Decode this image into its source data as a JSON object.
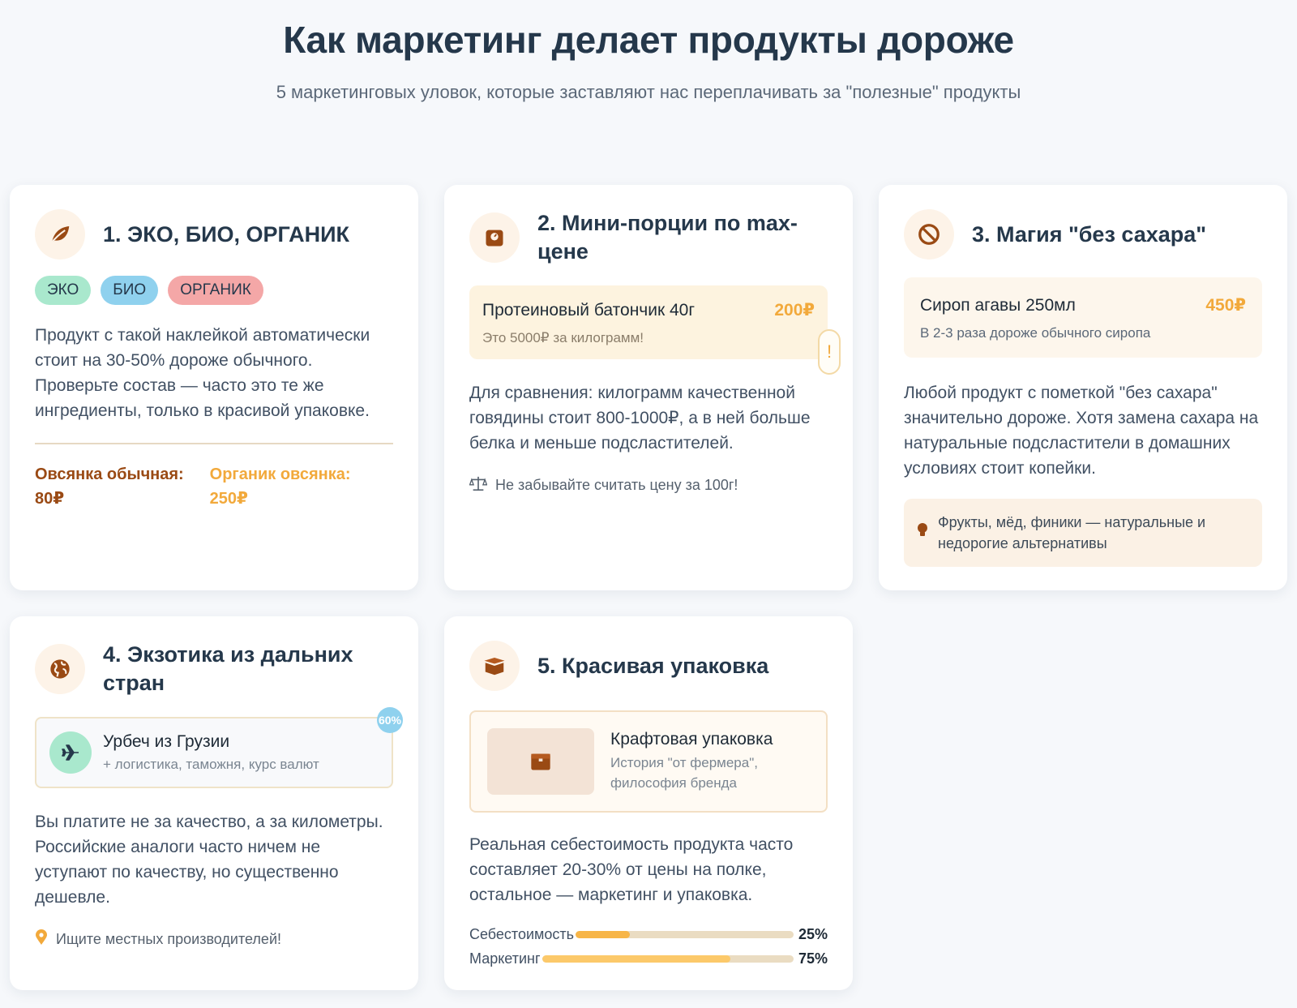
{
  "header": {
    "title": "Как маркетинг делает продукты дороже",
    "subtitle": "5 маркетинговых уловок, которые заставляют нас переплачивать за \"полезные\" продукты"
  },
  "cards": [
    {
      "title": "1. ЭКО, БИО, ОРГАНИК",
      "icon": "leaf-icon",
      "tags": [
        "ЭКО",
        "БИО",
        "ОРГАНИК"
      ],
      "text": "Продукт с такой наклейкой автоматически стоит на 30-50% дороже обычного. Проверьте состав — часто это те же ингредиенты, только в красивой упаковке.",
      "compare_plain": "Овсянка обычная: 80₽",
      "compare_organic": "Органик овсянка: 250₽"
    },
    {
      "title": "2. Мини-порции по max-цене",
      "icon": "weight-scale-icon",
      "product_name": "Протеиновый батончик 40г",
      "product_price": "200₽",
      "product_note": "Это 5000₽ за килограмм!",
      "warning_mark": "!",
      "text": "Для сравнения: килограмм качественной говядины стоит 800-1000₽, а в ней больше белка и меньше подсластителей.",
      "hint": "Не забывайте считать цену за 100г!"
    },
    {
      "title": "3. Магия \"без сахара\"",
      "icon": "ban-icon",
      "product_name": "Сироп агавы 250мл",
      "product_price": "450₽",
      "product_note": "В 2-3 раза дороже обычного сиропа",
      "text": "Любой продукт с пометкой \"без сахара\" значительно дороже. Хотя замена сахара на натуральные подсластители в домашних условиях стоит копейки.",
      "tip": "Фрукты, мёд, финики — натуральные и недорогие альтернативы"
    },
    {
      "title": "4. Экзотика из дальних стран",
      "icon": "globe-icon",
      "route_name": "Урбеч из Грузии",
      "route_sub": "+ логистика, таможня, курс валют",
      "route_badge": "60%",
      "text": "Вы платите не за качество, а за километры. Российские аналоги часто ничем не уступают по качеству, но существенно дешевле.",
      "hint": "Ищите местных производителей!"
    },
    {
      "title": "5. Красивая упаковка",
      "icon": "open-box-icon",
      "pack_name": "Крафтовая упаковка",
      "pack_sub": "История \"от фермера\", философия бренда",
      "text": "Реальная себестоимость продукта часто составляет 20-30% от цены на полке, остальное — маркетинг и упаковка.",
      "bars": [
        {
          "label": "Себестоимость",
          "value": 25,
          "pct": "25%",
          "color": "#f7b547"
        },
        {
          "label": "Маркетинг",
          "value": 75,
          "pct": "75%",
          "color": "#fcc96a"
        }
      ]
    }
  ],
  "colors": {
    "accent_brown": "#9a4a14",
    "accent_orange": "#f2a93b"
  }
}
